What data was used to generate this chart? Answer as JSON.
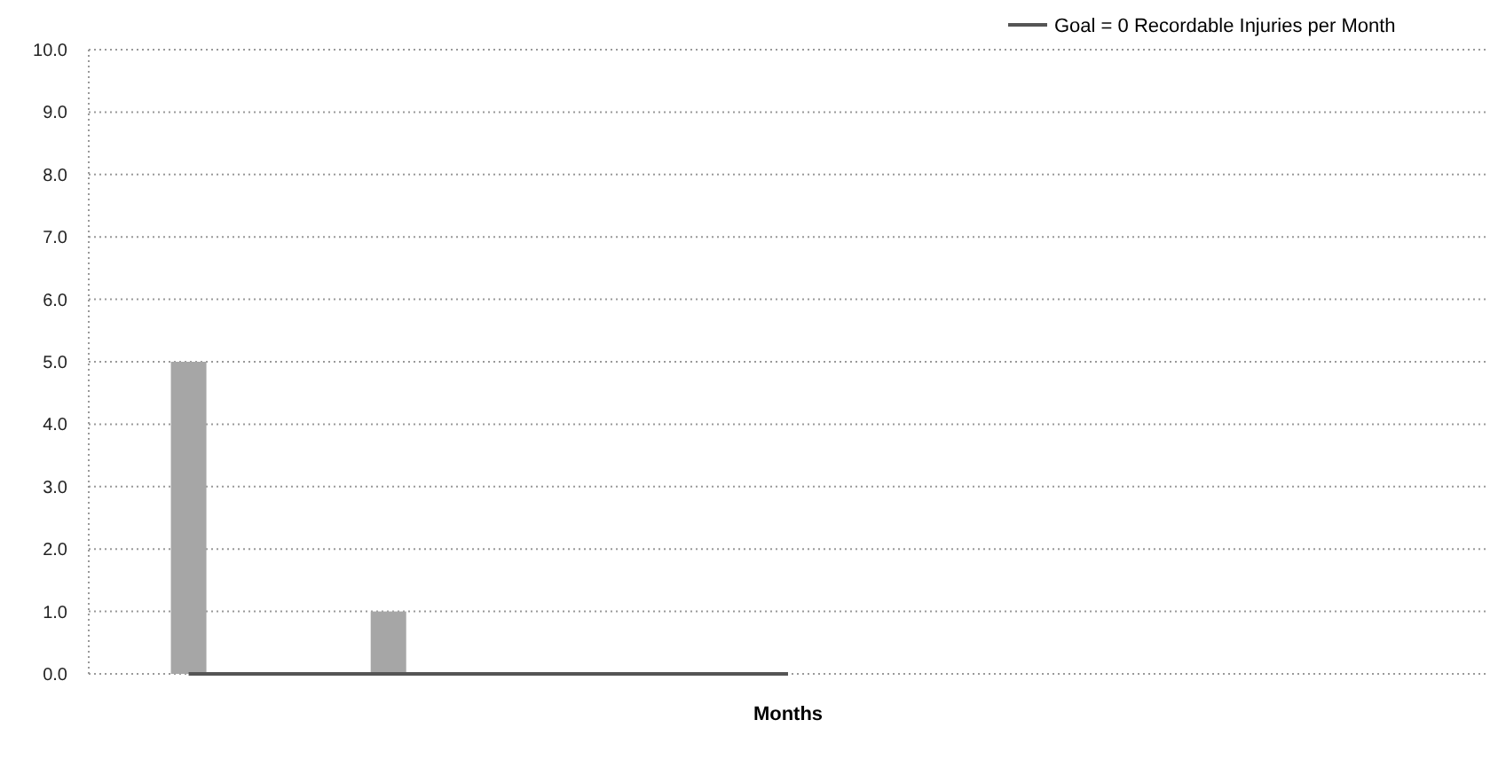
{
  "chart_data": {
    "type": "bar",
    "xlabel": "Months",
    "categories": [
      null,
      null,
      null,
      null,
      null,
      null,
      null
    ],
    "series": [
      {
        "color": "#a6a6a6",
        "values": [
          5,
          1,
          0,
          0,
          null,
          null,
          null
        ]
      },
      {
        "type": "line",
        "name": "Goal = 0 Recordable Injuries per Month",
        "color": "#555555",
        "values": [
          0,
          0,
          0,
          0,
          null,
          null,
          null
        ]
      }
    ],
    "ylim": [
      0,
      10
    ],
    "yticks": [
      {
        "value": 0,
        "label": "0.0"
      },
      {
        "value": 1,
        "label": "1.0"
      },
      {
        "value": 2,
        "label": "2.0"
      },
      {
        "value": 3,
        "label": "3.0"
      },
      {
        "value": 4,
        "label": "4.0"
      },
      {
        "value": 5,
        "label": "5.0"
      },
      {
        "value": 6,
        "label": "6.0"
      },
      {
        "value": 7,
        "label": "7.0"
      },
      {
        "value": 8,
        "label": "8.0"
      },
      {
        "value": 9,
        "label": "9.0"
      },
      {
        "value": 10,
        "label": "10.0"
      }
    ],
    "grid": "y",
    "legend": "top right"
  }
}
